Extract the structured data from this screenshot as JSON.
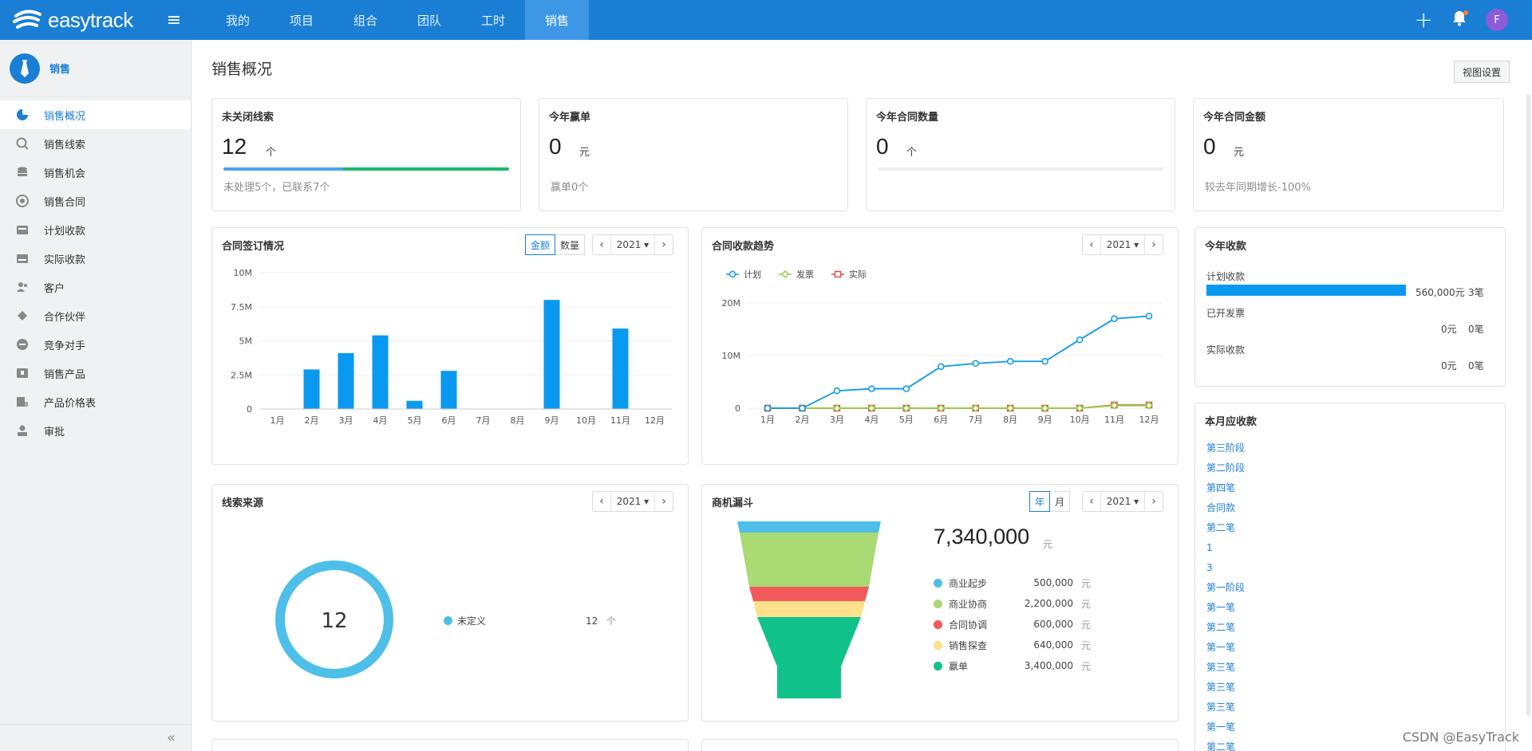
{
  "app": {
    "name": "easytrack"
  },
  "nav": [
    "我的",
    "项目",
    "组合",
    "团队",
    "工时",
    "销售"
  ],
  "nav_active": "销售",
  "user": {
    "avatar_letter": "F"
  },
  "sidebar": {
    "title": "销售",
    "items": [
      "销售概况",
      "销售线索",
      "销售机会",
      "销售合同",
      "计划收款",
      "实际收款",
      "客户",
      "合作伙伴",
      "竞争对手",
      "销售产品",
      "产品价格表",
      "审批"
    ]
  },
  "page": {
    "title": "销售概况",
    "view_settings": "视图设置"
  },
  "stats": [
    {
      "title": "未关闭线索",
      "value": "12",
      "unit": "个",
      "note": "未处理5个，已联系7个",
      "progress_blue": 0.42,
      "progress_green": 0.58
    },
    {
      "title": "今年赢单",
      "value": "0",
      "unit": "元",
      "note": "赢单0个"
    },
    {
      "title": "今年合同数量",
      "value": "0",
      "unit": "个",
      "note": ""
    },
    {
      "title": "今年合同金额",
      "value": "0",
      "unit": "元",
      "note": "较去年同期增长-100%"
    }
  ],
  "contract_sign": {
    "title": "合同签订情况",
    "seg": [
      "金额",
      "数量"
    ],
    "year": "2021"
  },
  "collection_trend": {
    "title": "合同收款趋势",
    "year": "2021"
  },
  "year_receipts": {
    "title": "今年收款",
    "planned_label": "计划收款",
    "planned_amount": "560,000元",
    "planned_count": "3笔",
    "planned_fraction": 1.0,
    "invoiced_label": "已开发票",
    "invoiced_amount": "0元",
    "invoiced_count": "0笔",
    "actual_label": "实际收款",
    "actual_amount": "0元",
    "actual_count": "0笔"
  },
  "month_due": {
    "title": "本月应收款",
    "items": [
      "第三阶段",
      "第二阶段",
      "第四笔",
      "合同款",
      "第二笔",
      "1",
      "3",
      "第一阶段",
      "第一笔",
      "第二笔",
      "第一笔",
      "第三笔",
      "第三笔",
      "第三笔",
      "第一笔",
      "第二笔"
    ]
  },
  "lead_source": {
    "title": "线索来源",
    "year": "2021",
    "total": "12",
    "legend": [
      {
        "name": "未定义",
        "value": "12",
        "unit": "个",
        "color": "#4dbfe8"
      }
    ]
  },
  "funnel": {
    "title": "商机漏斗",
    "seg": [
      "年",
      "月"
    ],
    "year": "2021",
    "total": "7,340,000",
    "unit": "元",
    "stages": [
      {
        "name": "商业起步",
        "value": "500,000",
        "unit": "元",
        "color": "#4dbfe8"
      },
      {
        "name": "商业协商",
        "value": "2,200,000",
        "unit": "元",
        "color": "#a9da74"
      },
      {
        "name": "合同协调",
        "value": "600,000",
        "unit": "元",
        "color": "#f2595a"
      },
      {
        "name": "销售探查",
        "value": "640,000",
        "unit": "元",
        "color": "#fde08a"
      },
      {
        "name": "赢单",
        "value": "3,400,000",
        "unit": "元",
        "color": "#10c28a"
      }
    ]
  },
  "chart_data": [
    {
      "type": "bar",
      "title": "合同签订情况",
      "categories": [
        "1月",
        "2月",
        "3月",
        "4月",
        "5月",
        "6月",
        "7月",
        "8月",
        "9月",
        "10月",
        "11月",
        "12月"
      ],
      "values": [
        0,
        2900000,
        4100000,
        5400000,
        600000,
        2800000,
        0,
        0,
        8000000,
        0,
        5900000,
        0
      ],
      "ylim": [
        0,
        10000000
      ],
      "yticks": [
        0,
        2500000,
        5000000,
        7500000,
        10000000
      ],
      "ytick_labels": [
        "0",
        "2.5M",
        "5M",
        "7.5M",
        "10M"
      ],
      "color": "#0a99f0"
    },
    {
      "type": "line",
      "title": "合同收款趋势",
      "categories": [
        "1月",
        "2月",
        "3月",
        "4月",
        "5月",
        "6月",
        "7月",
        "8月",
        "9月",
        "10月",
        "11月",
        "12月"
      ],
      "ylim": [
        0,
        20000000
      ],
      "yticks": [
        0,
        10000000,
        20000000
      ],
      "ytick_labels": [
        "0",
        "10M",
        "20M"
      ],
      "series": [
        {
          "name": "计划",
          "color": "#0a99f0",
          "marker": "circle",
          "values": [
            0,
            0,
            3300000,
            3700000,
            3700000,
            7900000,
            8500000,
            8900000,
            8900000,
            13000000,
            17000000,
            17500000
          ]
        },
        {
          "name": "发票",
          "color": "#8fd147",
          "marker": "diamond",
          "values": [
            0,
            0,
            0,
            0,
            0,
            0,
            0,
            0,
            0,
            0,
            500000,
            500000
          ]
        },
        {
          "name": "实际",
          "color": "#e64c3c",
          "marker": "square",
          "values": [
            0,
            0,
            0,
            0,
            0,
            0,
            0,
            0,
            0,
            0,
            600000,
            600000
          ]
        }
      ]
    }
  ]
}
